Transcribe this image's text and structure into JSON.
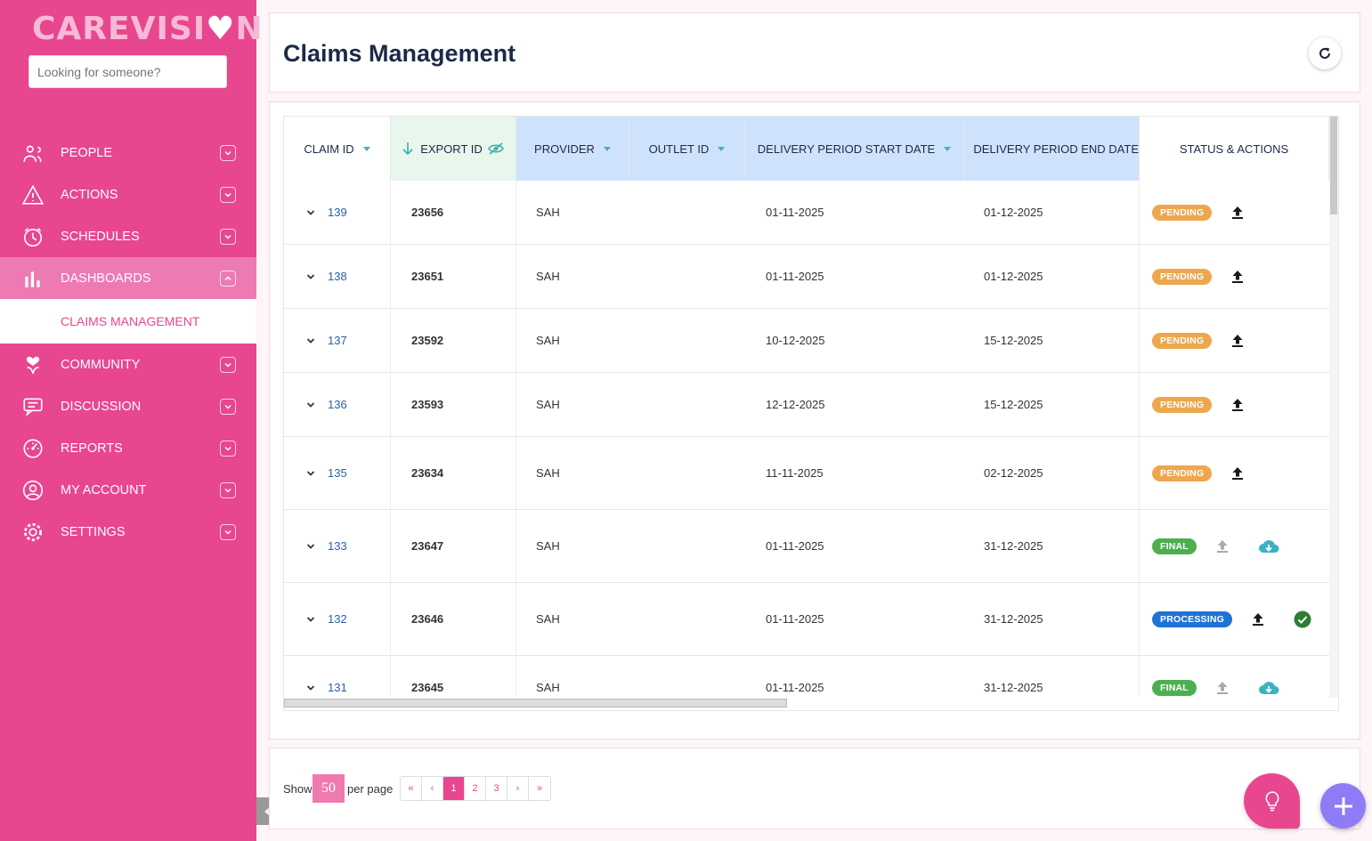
{
  "sidebar": {
    "logo": "CAREVISI",
    "logo_end": "N",
    "search_placeholder": "Looking for someone?",
    "items": [
      {
        "label": "PEOPLE",
        "icon": "people-icon"
      },
      {
        "label": "ACTIONS",
        "icon": "warning-icon"
      },
      {
        "label": "SCHEDULES",
        "icon": "clock-icon"
      },
      {
        "label": "DASHBOARDS",
        "icon": "bar-chart-icon",
        "expanded": true
      },
      {
        "label": "COMMUNITY",
        "icon": "heart-hands-icon"
      },
      {
        "label": "DISCUSSION",
        "icon": "chat-icon"
      },
      {
        "label": "REPORTS",
        "icon": "gauge-icon"
      },
      {
        "label": "MY ACCOUNT",
        "icon": "user-icon"
      },
      {
        "label": "SETTINGS",
        "icon": "gear-icon"
      }
    ],
    "subitem": "CLAIMS MANAGEMENT"
  },
  "header": {
    "title": "Claims Management"
  },
  "table": {
    "columns": [
      "CLAIM ID",
      "EXPORT ID",
      "PROVIDER",
      "OUTLET ID",
      "DELIVERY PERIOD START DATE",
      "DELIVERY PERIOD END DATE",
      "STATUS & ACTIONS"
    ],
    "rows": [
      {
        "claim_id": "139",
        "export_id": "23656",
        "provider": "SAH",
        "outlet_id": "",
        "start": "01-11-2025",
        "end": "01-12-2025",
        "status": "PENDING"
      },
      {
        "claim_id": "138",
        "export_id": "23651",
        "provider": "SAH",
        "outlet_id": "",
        "start": "01-11-2025",
        "end": "01-12-2025",
        "status": "PENDING"
      },
      {
        "claim_id": "137",
        "export_id": "23592",
        "provider": "SAH",
        "outlet_id": "",
        "start": "10-12-2025",
        "end": "15-12-2025",
        "status": "PENDING"
      },
      {
        "claim_id": "136",
        "export_id": "23593",
        "provider": "SAH",
        "outlet_id": "",
        "start": "12-12-2025",
        "end": "15-12-2025",
        "status": "PENDING"
      },
      {
        "claim_id": "135",
        "export_id": "23634",
        "provider": "SAH",
        "outlet_id": "",
        "start": "11-11-2025",
        "end": "02-12-2025",
        "status": "PENDING"
      },
      {
        "claim_id": "133",
        "export_id": "23647",
        "provider": "SAH",
        "outlet_id": "",
        "start": "01-11-2025",
        "end": "31-12-2025",
        "status": "FINAL"
      },
      {
        "claim_id": "132",
        "export_id": "23646",
        "provider": "SAH",
        "outlet_id": "",
        "start": "01-11-2025",
        "end": "31-12-2025",
        "status": "PROCESSING"
      },
      {
        "claim_id": "131",
        "export_id": "23645",
        "provider": "SAH",
        "outlet_id": "",
        "start": "01-11-2025",
        "end": "31-12-2025",
        "status": "FINAL"
      }
    ]
  },
  "status_colors": {
    "PENDING": "#eea74f",
    "FINAL": "#4caf50",
    "PROCESSING": "#1f73d6"
  },
  "pagination": {
    "show_label": "Show",
    "per_page_value": "50",
    "per_page_label": "per page",
    "pages": [
      "«",
      "‹",
      "1",
      "2",
      "3",
      "›",
      "»"
    ],
    "current": "1"
  },
  "colors": {
    "brand": "#e8468f",
    "accent": "#8e7bf5"
  }
}
